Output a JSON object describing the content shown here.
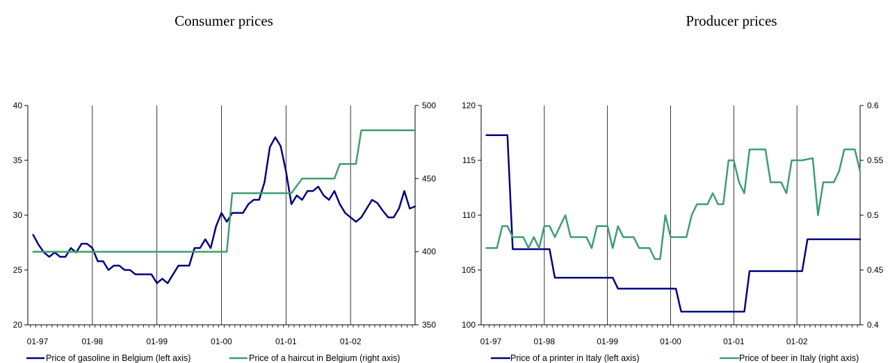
{
  "colors": {
    "primary_series": "#000080",
    "secondary_series": "#3d9e6f",
    "axis": "#000000"
  },
  "chart_data": [
    {
      "type": "line",
      "title": "Consumer prices",
      "x_ticks": [
        "01-97",
        "01-98",
        "01-99",
        "01-00",
        "01-01",
        "01-02"
      ],
      "x_unit": "months since 01-97",
      "xlim": [
        0,
        70
      ],
      "ylim_left": [
        20,
        40
      ],
      "ylim_right": [
        350,
        500
      ],
      "y_ticks_left": [
        20,
        25,
        30,
        35,
        40
      ],
      "y_ticks_right": [
        350,
        400,
        450,
        500
      ],
      "grid": "vertical at each year",
      "legend_position": "bottom",
      "series": [
        {
          "name": "Price of gasoline in Belgium (left axis)",
          "axis": "left",
          "color": "#000080",
          "points": [
            [
              0,
              28.2
            ],
            [
              1,
              27.3
            ],
            [
              2,
              26.6
            ],
            [
              3,
              26.2
            ],
            [
              4,
              26.6
            ],
            [
              5,
              26.2
            ],
            [
              6,
              26.2
            ],
            [
              7,
              27.0
            ],
            [
              8,
              26.6
            ],
            [
              9,
              27.4
            ],
            [
              10,
              27.4
            ],
            [
              11,
              27.0
            ],
            [
              12,
              25.8
            ],
            [
              13,
              25.8
            ],
            [
              14,
              25.0
            ],
            [
              15,
              25.4
            ],
            [
              16,
              25.4
            ],
            [
              17,
              25.0
            ],
            [
              18,
              25.0
            ],
            [
              19,
              24.6
            ],
            [
              20,
              24.6
            ],
            [
              21,
              24.6
            ],
            [
              22,
              24.6
            ],
            [
              23,
              23.8
            ],
            [
              24,
              24.2
            ],
            [
              25,
              23.8
            ],
            [
              26,
              24.6
            ],
            [
              27,
              25.4
            ],
            [
              28,
              25.4
            ],
            [
              29,
              25.4
            ],
            [
              30,
              27.0
            ],
            [
              31,
              27.0
            ],
            [
              32,
              27.8
            ],
            [
              33,
              27.0
            ],
            [
              34,
              29.0
            ],
            [
              35,
              30.2
            ],
            [
              36,
              29.4
            ],
            [
              37,
              30.2
            ],
            [
              38,
              30.2
            ],
            [
              39,
              30.2
            ],
            [
              40,
              31.0
            ],
            [
              41,
              31.4
            ],
            [
              42,
              31.4
            ],
            [
              43,
              33.0
            ],
            [
              44,
              36.2
            ],
            [
              45,
              37.1
            ],
            [
              46,
              36.3
            ],
            [
              47,
              34.0
            ],
            [
              48,
              31.0
            ],
            [
              49,
              31.8
            ],
            [
              50,
              31.4
            ],
            [
              51,
              32.2
            ],
            [
              52,
              32.2
            ],
            [
              53,
              32.6
            ],
            [
              54,
              31.8
            ],
            [
              55,
              31.4
            ],
            [
              56,
              32.2
            ],
            [
              57,
              31.0
            ],
            [
              58,
              30.2
            ],
            [
              59,
              29.8
            ],
            [
              60,
              29.4
            ],
            [
              61,
              29.8
            ],
            [
              62,
              30.6
            ],
            [
              63,
              31.4
            ],
            [
              64,
              31.1
            ],
            [
              65,
              30.4
            ],
            [
              66,
              29.8
            ],
            [
              67,
              29.8
            ],
            [
              68,
              30.6
            ],
            [
              69,
              32.2
            ],
            [
              70,
              30.6
            ],
            [
              71,
              30.8
            ]
          ]
        },
        {
          "name": "Price of a haircut in Belgium (right axis)",
          "axis": "right",
          "color": "#3d9e6f",
          "points": [
            [
              0,
              400
            ],
            [
              36,
              400
            ],
            [
              37,
              440
            ],
            [
              48,
              440
            ],
            [
              50,
              450
            ],
            [
              56,
              450
            ],
            [
              57,
              460
            ],
            [
              60,
              460
            ],
            [
              61,
              483
            ],
            [
              71,
              483
            ]
          ]
        }
      ]
    },
    {
      "type": "line",
      "title": "Producer prices",
      "x_ticks": [
        "01-97",
        "01-98",
        "01-99",
        "01-00",
        "01-01",
        "01-02"
      ],
      "x_unit": "months since 01-97",
      "xlim": [
        0,
        70
      ],
      "ylim_left": [
        100,
        120
      ],
      "ylim_right": [
        0.4,
        0.6
      ],
      "y_ticks_left": [
        100,
        105,
        110,
        115,
        120
      ],
      "y_ticks_right": [
        0.4,
        0.45,
        0.5,
        0.55,
        0.6
      ],
      "grid": "vertical at each year",
      "legend_position": "bottom",
      "series": [
        {
          "name": "Price of a printer in Italy (left axis)",
          "axis": "left",
          "color": "#000080",
          "points": [
            [
              0,
              117.3
            ],
            [
              4,
              117.3
            ],
            [
              5,
              106.9
            ],
            [
              12,
              106.9
            ],
            [
              13,
              104.3
            ],
            [
              24,
              104.3
            ],
            [
              25,
              103.3
            ],
            [
              36,
              103.3
            ],
            [
              37,
              101.2
            ],
            [
              49,
              101.2
            ],
            [
              50,
              104.9
            ],
            [
              60,
              104.9
            ],
            [
              61,
              107.8
            ],
            [
              71,
              107.8
            ]
          ]
        },
        {
          "name": "Price of beer in Italy (right axis)",
          "axis": "right",
          "color": "#3d9e6f",
          "points": [
            [
              0,
              0.47
            ],
            [
              2,
              0.47
            ],
            [
              3,
              0.49
            ],
            [
              4,
              0.49
            ],
            [
              5,
              0.48
            ],
            [
              7,
              0.48
            ],
            [
              8,
              0.47
            ],
            [
              9,
              0.48
            ],
            [
              10,
              0.47
            ],
            [
              11,
              0.49
            ],
            [
              12,
              0.49
            ],
            [
              13,
              0.48
            ],
            [
              14,
              0.49
            ],
            [
              15,
              0.5
            ],
            [
              16,
              0.48
            ],
            [
              19,
              0.48
            ],
            [
              20,
              0.47
            ],
            [
              21,
              0.49
            ],
            [
              23,
              0.49
            ],
            [
              24,
              0.47
            ],
            [
              25,
              0.49
            ],
            [
              26,
              0.48
            ],
            [
              28,
              0.48
            ],
            [
              29,
              0.47
            ],
            [
              31,
              0.47
            ],
            [
              32,
              0.46
            ],
            [
              33,
              0.46
            ],
            [
              34,
              0.5
            ],
            [
              35,
              0.48
            ],
            [
              38,
              0.48
            ],
            [
              39,
              0.5
            ],
            [
              40,
              0.51
            ],
            [
              42,
              0.51
            ],
            [
              43,
              0.52
            ],
            [
              44,
              0.51
            ],
            [
              45,
              0.51
            ],
            [
              46,
              0.55
            ],
            [
              47,
              0.55
            ],
            [
              48,
              0.53
            ],
            [
              49,
              0.52
            ],
            [
              50,
              0.56
            ],
            [
              53,
              0.56
            ],
            [
              54,
              0.53
            ],
            [
              56,
              0.53
            ],
            [
              57,
              0.52
            ],
            [
              58,
              0.55
            ],
            [
              60,
              0.55
            ],
            [
              62,
              0.552
            ],
            [
              63,
              0.5
            ],
            [
              64,
              0.53
            ],
            [
              66,
              0.53
            ],
            [
              67,
              0.54
            ],
            [
              68,
              0.56
            ],
            [
              70,
              0.56
            ],
            [
              71,
              0.54
            ]
          ]
        }
      ]
    }
  ]
}
